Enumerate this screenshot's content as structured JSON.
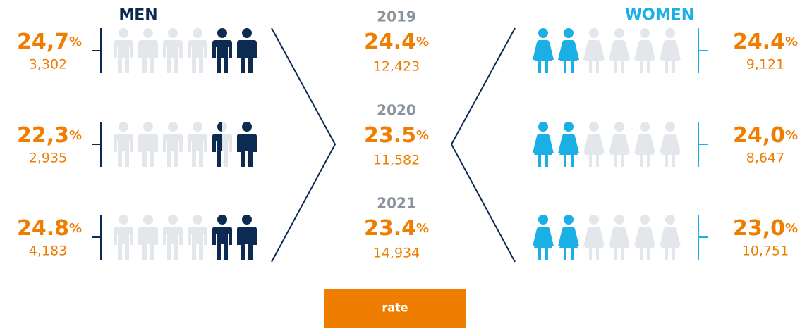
{
  "men": {
    "label": "MEN",
    "rows": [
      {
        "rate": "24,7",
        "unit": "%",
        "count": "3,302",
        "filled_icons": 2
      },
      {
        "rate": "22,3",
        "unit": "%",
        "count": "2,935",
        "filled_icons": 1.5
      },
      {
        "rate": "24.8",
        "unit": "%",
        "count": "4,183",
        "filled_icons": 2
      }
    ]
  },
  "women": {
    "label": "WOMEN",
    "rows": [
      {
        "rate": "24.4",
        "unit": "%",
        "count": "9,121",
        "filled_icons": 2
      },
      {
        "rate": "24,0",
        "unit": "%",
        "count": "8,647",
        "filled_icons": 2
      },
      {
        "rate": "23,0",
        "unit": "%",
        "count": "10,751",
        "filled_icons": 2
      }
    ]
  },
  "years": [
    {
      "year": "2019",
      "rate": "24.4",
      "unit": "%",
      "count": "12,423"
    },
    {
      "year": "2020",
      "rate": "23.5",
      "unit": "%",
      "count": "11,582"
    },
    {
      "year": "2021",
      "rate": "23.4",
      "unit": "%",
      "count": "14,934"
    }
  ],
  "icons_per_row": 6,
  "button": {
    "label": "rate"
  }
}
